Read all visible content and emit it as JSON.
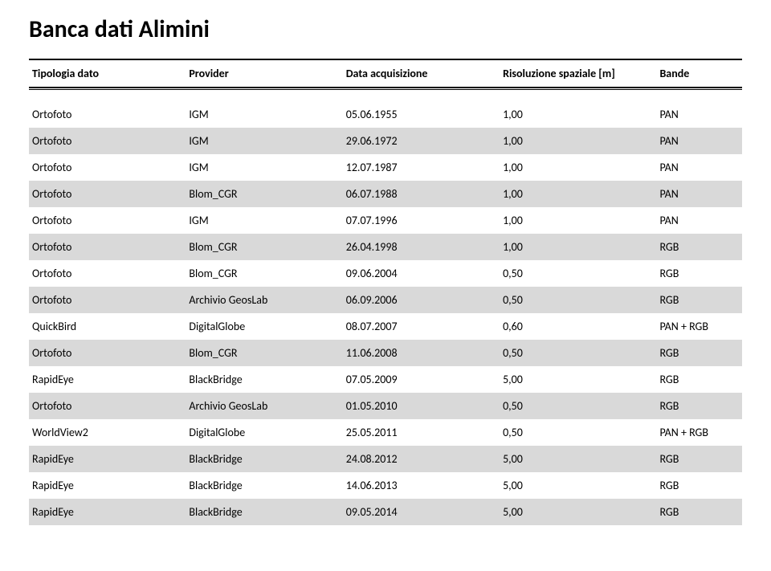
{
  "title": "Banca dati Alimini",
  "columns": {
    "tipologia": "Tipologia dato",
    "provider": "Provider",
    "data": "Data acquisizione",
    "risoluzione": "Risoluzione spaziale [m]",
    "bande": "Bande"
  },
  "colors": {
    "background": "#ffffff",
    "alt_row": "#d9d9d9",
    "text": "#000000",
    "rule": "#000000"
  },
  "typography": {
    "title_fontsize_pt": 22,
    "title_weight": "700",
    "header_fontsize_pt": 11,
    "header_weight": "700",
    "body_fontsize_pt": 11,
    "font_family": "Calibri"
  },
  "rows": [
    {
      "tipologia": "Ortofoto",
      "provider": "IGM",
      "data": "05.06.1955",
      "risoluzione": "1,00",
      "bande": "PAN"
    },
    {
      "tipologia": "Ortofoto",
      "provider": "IGM",
      "data": "29.06.1972",
      "risoluzione": "1,00",
      "bande": "PAN"
    },
    {
      "tipologia": "Ortofoto",
      "provider": "IGM",
      "data": "12.07.1987",
      "risoluzione": "1,00",
      "bande": "PAN"
    },
    {
      "tipologia": "Ortofoto",
      "provider": "Blom_CGR",
      "data": "06.07.1988",
      "risoluzione": "1,00",
      "bande": "PAN"
    },
    {
      "tipologia": "Ortofoto",
      "provider": "IGM",
      "data": "07.07.1996",
      "risoluzione": "1,00",
      "bande": "PAN"
    },
    {
      "tipologia": "Ortofoto",
      "provider": "Blom_CGR",
      "data": "26.04.1998",
      "risoluzione": "1,00",
      "bande": "RGB"
    },
    {
      "tipologia": "Ortofoto",
      "provider": "Blom_CGR",
      "data": "09.06.2004",
      "risoluzione": "0,50",
      "bande": "RGB"
    },
    {
      "tipologia": "Ortofoto",
      "provider": "Archivio GeosLab",
      "data": "06.09.2006",
      "risoluzione": "0,50",
      "bande": "RGB"
    },
    {
      "tipologia": "QuickBird",
      "provider": "DigitalGlobe",
      "data": "08.07.2007",
      "risoluzione": "0,60",
      "bande": "PAN + RGB"
    },
    {
      "tipologia": "Ortofoto",
      "provider": "Blom_CGR",
      "data": "11.06.2008",
      "risoluzione": "0,50",
      "bande": "RGB"
    },
    {
      "tipologia": "RapidEye",
      "provider": "BlackBridge",
      "data": "07.05.2009",
      "risoluzione": "5,00",
      "bande": "RGB"
    },
    {
      "tipologia": "Ortofoto",
      "provider": "Archivio GeosLab",
      "data": "01.05.2010",
      "risoluzione": "0,50",
      "bande": "RGB"
    },
    {
      "tipologia": "WorldView2",
      "provider": "DigitalGlobe",
      "data": "25.05.2011",
      "risoluzione": "0,50",
      "bande": "PAN + RGB"
    },
    {
      "tipologia": "RapidEye",
      "provider": "BlackBridge",
      "data": "24.08.2012",
      "risoluzione": "5,00",
      "bande": "RGB"
    },
    {
      "tipologia": "RapidEye",
      "provider": "BlackBridge",
      "data": "14.06.2013",
      "risoluzione": "5,00",
      "bande": "RGB"
    },
    {
      "tipologia": "RapidEye",
      "provider": "BlackBridge",
      "data": "09.05.2014",
      "risoluzione": "5,00",
      "bande": "RGB"
    }
  ]
}
